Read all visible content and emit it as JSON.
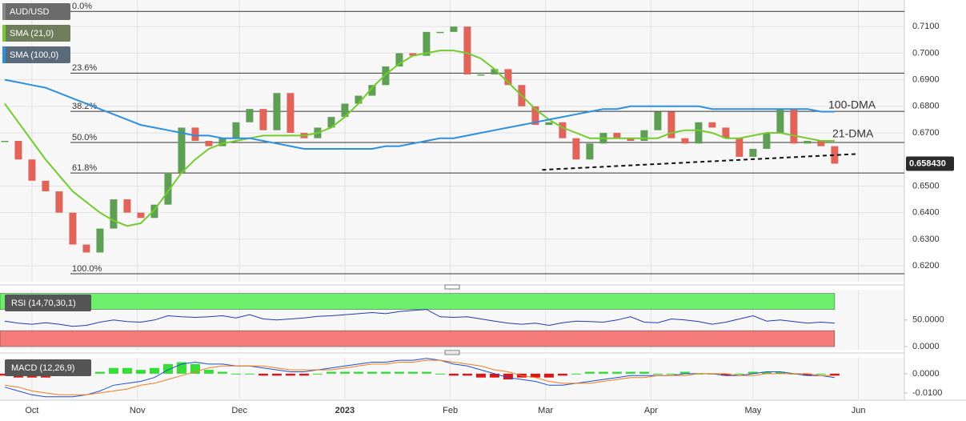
{
  "chart_data": [
    {
      "type": "candlestick",
      "x": [
        -8,
        -4,
        0,
        4,
        8,
        12,
        16,
        20,
        24,
        28,
        32,
        36,
        40,
        44,
        48,
        52,
        56,
        60,
        64,
        68,
        72,
        76,
        80,
        84,
        88,
        92,
        96,
        100,
        104,
        108,
        112,
        116,
        120,
        124,
        128,
        132,
        136,
        140,
        144,
        148,
        152,
        156,
        160,
        164,
        168,
        172,
        176,
        180,
        184,
        188,
        192,
        196,
        200,
        204,
        208,
        212,
        216,
        220,
        224,
        228,
        232,
        236
      ],
      "xlim": [
        -9.4,
        256.5
      ],
      "xticks": [
        {
          "value": 0,
          "label": "Oct"
        },
        {
          "value": 31,
          "label": "Nov"
        },
        {
          "value": 61,
          "label": "Dec"
        },
        {
          "value": 92,
          "label": "2023"
        },
        {
          "value": 123,
          "label": "Feb"
        },
        {
          "value": 151,
          "label": "Mar"
        },
        {
          "value": 182,
          "label": "Apr"
        },
        {
          "value": 212,
          "label": "May"
        },
        {
          "value": 243,
          "label": "Jun"
        }
      ],
      "ylim": [
        0.614,
        0.72
      ],
      "yticks": [
        {
          "value": 0.62,
          "label": "0.6200"
        },
        {
          "value": 0.63,
          "label": "0.6300"
        },
        {
          "value": 0.64,
          "label": "0.6400"
        },
        {
          "value": 0.65,
          "label": "0.6500"
        },
        {
          "value": 0.67,
          "label": "0.6700"
        },
        {
          "value": 0.68,
          "label": "0.6800"
        },
        {
          "value": 0.69,
          "label": "0.6900"
        },
        {
          "value": 0.7,
          "label": "0.7000"
        },
        {
          "value": 0.71,
          "label": "0.7100"
        }
      ],
      "grid": true,
      "up_color": "#5e9f55",
      "down_color": "#e0645a",
      "series": [
        {
          "name": "AUD/USD",
          "values": [
            0.667,
            0.66,
            0.652,
            0.648,
            0.64,
            0.628,
            0.625,
            0.634,
            0.645,
            0.64,
            0.638,
            0.643,
            0.655,
            0.672,
            0.667,
            0.665,
            0.668,
            0.674,
            0.679,
            0.671,
            0.685,
            0.67,
            0.668,
            0.672,
            0.676,
            0.681,
            0.684,
            0.688,
            0.695,
            0.7,
            0.699,
            0.708,
            0.708,
            0.71,
            0.692,
            0.692,
            0.694,
            0.688,
            0.68,
            0.673,
            0.674,
            0.668,
            0.66,
            0.666,
            0.67,
            0.668,
            0.667,
            0.671,
            0.678,
            0.668,
            0.666,
            0.674,
            0.672,
            0.668,
            0.661,
            0.664,
            0.67,
            0.679,
            0.666,
            0.667,
            0.665,
            0.65843
          ]
        },
        {
          "name": "SMA (21,0)",
          "color": "#74cc2c",
          "values": [
            0.681,
            0.674,
            0.667,
            0.66,
            0.654,
            0.648,
            0.644,
            0.64,
            0.637,
            0.635,
            0.636,
            0.641,
            0.648,
            0.655,
            0.66,
            0.664,
            0.666,
            0.667,
            0.668,
            0.669,
            0.669,
            0.669,
            0.669,
            0.67,
            0.672,
            0.676,
            0.681,
            0.687,
            0.692,
            0.696,
            0.699,
            0.7,
            0.701,
            0.701,
            0.7,
            0.698,
            0.694,
            0.689,
            0.684,
            0.679,
            0.675,
            0.672,
            0.67,
            0.668,
            0.668,
            0.668,
            0.668,
            0.668,
            0.668,
            0.67,
            0.671,
            0.671,
            0.67,
            0.668,
            0.668,
            0.669,
            0.67,
            0.67,
            0.669,
            0.668,
            0.667,
            0.667
          ]
        },
        {
          "name": "SMA (100,0)",
          "color": "#2e8fe0",
          "values": [
            0.69,
            0.689,
            0.688,
            0.687,
            0.685,
            0.683,
            0.681,
            0.679,
            0.677,
            0.675,
            0.673,
            0.672,
            0.671,
            0.67,
            0.669,
            0.669,
            0.668,
            0.668,
            0.668,
            0.667,
            0.666,
            0.665,
            0.664,
            0.664,
            0.664,
            0.664,
            0.664,
            0.664,
            0.665,
            0.665,
            0.666,
            0.667,
            0.668,
            0.668,
            0.669,
            0.67,
            0.671,
            0.672,
            0.673,
            0.674,
            0.675,
            0.676,
            0.677,
            0.678,
            0.679,
            0.679,
            0.68,
            0.68,
            0.68,
            0.68,
            0.68,
            0.68,
            0.679,
            0.679,
            0.679,
            0.679,
            0.679,
            0.679,
            0.679,
            0.679,
            0.678,
            0.678
          ]
        }
      ],
      "fib_levels": [
        {
          "label": "0.0%",
          "value": 0.7157
        },
        {
          "label": "23.6%",
          "value": 0.6925
        },
        {
          "label": "38.2%",
          "value": 0.6781
        },
        {
          "label": "50.0%",
          "value": 0.6664
        },
        {
          "label": "61.8%",
          "value": 0.6549
        },
        {
          "label": "100.0%",
          "value": 0.617
        }
      ],
      "trendline": {
        "x": [
          150,
          243
        ],
        "values": [
          0.6561,
          0.6621
        ]
      },
      "annotations": [
        {
          "text": "100-DMA",
          "color": "#2e8fe0"
        },
        {
          "text": "21-DMA",
          "color": "#74cc2c"
        }
      ],
      "last_price": {
        "value": 0.65843,
        "label": "0.658430"
      }
    },
    {
      "type": "line",
      "title": "RSI (14,70,30,1)",
      "ylim": [
        -6,
        107
      ],
      "yticks": [
        {
          "value": 0,
          "label": "0.0000"
        },
        {
          "value": 50,
          "label": "50.0000"
        }
      ],
      "bands": [
        {
          "from": 70,
          "to": 100,
          "color": "#6cf06c"
        },
        {
          "from": 0,
          "to": 30,
          "color": "#f57b7b"
        }
      ],
      "series": [
        {
          "color": "#2438b0",
          "values": [
            48,
            44,
            42,
            45,
            42,
            38,
            40,
            46,
            50,
            47,
            46,
            50,
            58,
            56,
            55,
            56,
            58,
            54,
            60,
            52,
            50,
            52,
            54,
            57,
            58,
            60,
            62,
            64,
            62,
            66,
            68,
            70,
            56,
            55,
            56,
            52,
            48,
            44,
            42,
            44,
            40,
            45,
            48,
            47,
            46,
            50,
            56,
            46,
            45,
            52,
            50,
            47,
            42,
            46,
            52,
            58,
            48,
            50,
            47,
            44,
            46,
            44
          ]
        }
      ]
    },
    {
      "type": "macd",
      "title": "MACD (12,26,9)",
      "ylim": [
        -0.0138,
        0.0083
      ],
      "yticks": [
        {
          "value": -0.01,
          "label": "-0.0100"
        },
        {
          "value": 0,
          "label": "0.0000"
        }
      ],
      "up_color": "#36dd36",
      "down_color": "#e01414",
      "series": [
        {
          "color": "#1f4fd0",
          "values": [
            -0.007,
            -0.009,
            -0.011,
            -0.012,
            -0.012,
            -0.012,
            -0.011,
            -0.009,
            -0.006,
            -0.005,
            -0.004,
            -0.002,
            0.002,
            0.005,
            0.006,
            0.005,
            0.005,
            0.004,
            0.004,
            0.003,
            0.002,
            0.001,
            0.001,
            0.002,
            0.003,
            0.004,
            0.005,
            0.006,
            0.006,
            0.007,
            0.007,
            0.008,
            0.007,
            0.005,
            0.004,
            0.002,
            0.0,
            -0.002,
            -0.003,
            -0.004,
            -0.006,
            -0.006,
            -0.005,
            -0.004,
            -0.003,
            -0.002,
            -0.001,
            -0.001,
            -0.001,
            -0.001,
            0.0,
            0.0,
            0.0,
            -0.001,
            -0.001,
            0.0,
            0.001,
            0.001,
            0.0,
            -0.001,
            -0.001,
            -0.002
          ]
        },
        {
          "color": "#f07d1a",
          "values": [
            -0.006,
            -0.007,
            -0.009,
            -0.01,
            -0.011,
            -0.011,
            -0.011,
            -0.01,
            -0.009,
            -0.008,
            -0.006,
            -0.005,
            -0.003,
            -0.001,
            0.001,
            0.003,
            0.004,
            0.004,
            0.004,
            0.004,
            0.003,
            0.002,
            0.002,
            0.002,
            0.002,
            0.003,
            0.004,
            0.005,
            0.005,
            0.006,
            0.006,
            0.007,
            0.007,
            0.006,
            0.005,
            0.004,
            0.002,
            0.001,
            -0.001,
            -0.002,
            -0.004,
            -0.005,
            -0.005,
            -0.005,
            -0.004,
            -0.003,
            -0.002,
            -0.002,
            -0.001,
            -0.001,
            -0.001,
            0.0,
            0.0,
            0.0,
            -0.001,
            -0.001,
            0.0,
            0.0,
            0.0,
            0.0,
            -0.001,
            -0.001
          ]
        }
      ],
      "histogram": [
        -0.001,
        -0.002,
        -0.002,
        -0.002,
        -0.001,
        -0.001,
        0.0,
        0.001,
        0.003,
        0.003,
        0.002,
        0.003,
        0.005,
        0.006,
        0.005,
        0.002,
        0.001,
        0.0,
        0.0,
        -0.001,
        -0.001,
        -0.001,
        -0.001,
        0.0,
        0.001,
        0.001,
        0.001,
        0.001,
        0.001,
        0.001,
        0.001,
        0.001,
        0.0,
        -0.001,
        -0.001,
        -0.002,
        -0.002,
        -0.003,
        -0.002,
        -0.002,
        -0.002,
        -0.001,
        0.0,
        0.001,
        0.001,
        0.001,
        0.001,
        0.001,
        0.0,
        0.0,
        0.001,
        0.0,
        0.0,
        -0.001,
        0.0,
        0.001,
        0.001,
        0.001,
        0.0,
        -0.001,
        0.0,
        -0.001
      ]
    }
  ]
}
